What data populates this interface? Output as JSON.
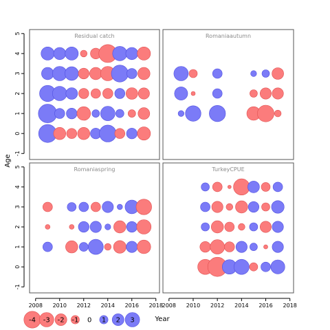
{
  "chart_data": {
    "type": "scatter",
    "description_free_note": "",
    "xlabel": "Year",
    "ylabel": "Age",
    "xlim": [
      2007.5,
      2018.3
    ],
    "ylim": [
      -1.3,
      5.2
    ],
    "x_ticks": [
      2008,
      2010,
      2012,
      2014,
      2016,
      2018
    ],
    "y_ticks": [
      -1,
      0,
      1,
      2,
      3,
      4,
      5
    ],
    "colors": {
      "positive": "#7b7bf7",
      "positive_stroke": "#5050e0",
      "negative": "#fb7c7c",
      "negative_stroke": "#e05050"
    },
    "legend": {
      "values": [
        -4,
        -3,
        -2,
        -1,
        0,
        1,
        2,
        3
      ],
      "labels": [
        "-4",
        "-3",
        "-2",
        "-1",
        "0",
        "1",
        "2",
        "3"
      ],
      "position": "bottom-left"
    },
    "panels": [
      {
        "title": "Residual catch",
        "points": [
          {
            "x": 2009,
            "y": 4,
            "v": 1.5
          },
          {
            "x": 2010,
            "y": 4,
            "v": 1.3
          },
          {
            "x": 2011,
            "y": 4,
            "v": 1.5
          },
          {
            "x": 2012,
            "y": 4,
            "v": -0.4
          },
          {
            "x": 2013,
            "y": 4,
            "v": -1.0
          },
          {
            "x": 2014,
            "y": 4,
            "v": -2.8
          },
          {
            "x": 2015,
            "y": 4,
            "v": 1.8
          },
          {
            "x": 2016,
            "y": 4,
            "v": 1.3
          },
          {
            "x": 2017,
            "y": 4,
            "v": -1.5
          },
          {
            "x": 2009,
            "y": 3,
            "v": 1.3
          },
          {
            "x": 2010,
            "y": 3,
            "v": 1.8
          },
          {
            "x": 2011,
            "y": 3,
            "v": 1.6
          },
          {
            "x": 2012,
            "y": 3,
            "v": -1.0
          },
          {
            "x": 2013,
            "y": 3,
            "v": -1.3
          },
          {
            "x": 2014,
            "y": 3,
            "v": -1.8
          },
          {
            "x": 2015,
            "y": 3,
            "v": 2.5
          },
          {
            "x": 2016,
            "y": 3,
            "v": 0.9
          },
          {
            "x": 2017,
            "y": 3,
            "v": -1.3
          },
          {
            "x": 2009,
            "y": 2,
            "v": 2.3
          },
          {
            "x": 2010,
            "y": 2,
            "v": 1.8
          },
          {
            "x": 2011,
            "y": 2,
            "v": 1.2
          },
          {
            "x": 2012,
            "y": 2,
            "v": -0.9
          },
          {
            "x": 2013,
            "y": 2,
            "v": -0.8
          },
          {
            "x": 2014,
            "y": 2,
            "v": -0.9
          },
          {
            "x": 2015,
            "y": 2,
            "v": 0.9
          },
          {
            "x": 2016,
            "y": 2,
            "v": -1.2
          },
          {
            "x": 2017,
            "y": 2,
            "v": -1.1
          },
          {
            "x": 2009,
            "y": 1,
            "v": 3.0
          },
          {
            "x": 2010,
            "y": 1,
            "v": 0.9
          },
          {
            "x": 2011,
            "y": 1,
            "v": 1.0
          },
          {
            "x": 2012,
            "y": 1,
            "v": -1.6
          },
          {
            "x": 2013,
            "y": 1,
            "v": 0.5
          },
          {
            "x": 2014,
            "y": 1,
            "v": 1.8
          },
          {
            "x": 2015,
            "y": 1,
            "v": 0.6
          },
          {
            "x": 2016,
            "y": 1,
            "v": -0.5
          },
          {
            "x": 2017,
            "y": 1,
            "v": -1.2
          },
          {
            "x": 2009,
            "y": 0,
            "v": 2.8
          },
          {
            "x": 2010,
            "y": 0,
            "v": -1.3
          },
          {
            "x": 2011,
            "y": 0,
            "v": -0.9
          },
          {
            "x": 2012,
            "y": 0,
            "v": -1.3
          },
          {
            "x": 2013,
            "y": 0,
            "v": 1.0
          },
          {
            "x": 2014,
            "y": 0,
            "v": 2.5
          },
          {
            "x": 2015,
            "y": 0,
            "v": -0.9
          },
          {
            "x": 2016,
            "y": 0,
            "v": 1.0
          },
          {
            "x": 2017,
            "y": 0,
            "v": -1.5
          }
        ]
      },
      {
        "title": "Romaniaautumn",
        "points": [
          {
            "x": 2009,
            "y": 3,
            "v": 1.8
          },
          {
            "x": 2010,
            "y": 3,
            "v": -0.6
          },
          {
            "x": 2012,
            "y": 3,
            "v": 0.8
          },
          {
            "x": 2015,
            "y": 3,
            "v": 0.3
          },
          {
            "x": 2016,
            "y": 3,
            "v": 0.5
          },
          {
            "x": 2017,
            "y": 3,
            "v": -1.2
          },
          {
            "x": 2009,
            "y": 2,
            "v": 1.5
          },
          {
            "x": 2010,
            "y": 2,
            "v": -0.15
          },
          {
            "x": 2012,
            "y": 2,
            "v": 0.8
          },
          {
            "x": 2015,
            "y": 2,
            "v": -0.5
          },
          {
            "x": 2016,
            "y": 2,
            "v": -1.1
          },
          {
            "x": 2017,
            "y": 2,
            "v": -1.1
          },
          {
            "x": 2009,
            "y": 1,
            "v": 0.3
          },
          {
            "x": 2010,
            "y": 1,
            "v": 2.1
          },
          {
            "x": 2012,
            "y": 1,
            "v": 2.3
          },
          {
            "x": 2015,
            "y": 1,
            "v": -1.6
          },
          {
            "x": 2016,
            "y": 1,
            "v": -2.4
          },
          {
            "x": 2017,
            "y": 1,
            "v": -0.4
          }
        ]
      },
      {
        "title": "Romaniaspring",
        "points": [
          {
            "x": 2009,
            "y": 3,
            "v": -0.8
          },
          {
            "x": 2011,
            "y": 3,
            "v": 0.7
          },
          {
            "x": 2012,
            "y": 3,
            "v": 0.8
          },
          {
            "x": 2013,
            "y": 3,
            "v": -0.8
          },
          {
            "x": 2014,
            "y": 3,
            "v": 1.1
          },
          {
            "x": 2015,
            "y": 3,
            "v": 0.25
          },
          {
            "x": 2016,
            "y": 3,
            "v": 1.6
          },
          {
            "x": 2017,
            "y": 3,
            "v": -2.1
          },
          {
            "x": 2009,
            "y": 2,
            "v": -0.2
          },
          {
            "x": 2011,
            "y": 2,
            "v": -0.2
          },
          {
            "x": 2012,
            "y": 2,
            "v": 1.0
          },
          {
            "x": 2013,
            "y": 2,
            "v": 1.1
          },
          {
            "x": 2014,
            "y": 2,
            "v": 0.3
          },
          {
            "x": 2015,
            "y": 2,
            "v": -1.3
          },
          {
            "x": 2016,
            "y": 2,
            "v": 1.0
          },
          {
            "x": 2017,
            "y": 2,
            "v": -1.8
          },
          {
            "x": 2009,
            "y": 1,
            "v": 0.8
          },
          {
            "x": 2011,
            "y": 1,
            "v": -1.3
          },
          {
            "x": 2012,
            "y": 1,
            "v": 0.7
          },
          {
            "x": 2013,
            "y": 1,
            "v": 2.0
          },
          {
            "x": 2014,
            "y": 1,
            "v": -0.4
          },
          {
            "x": 2015,
            "y": 1,
            "v": -1.4
          },
          {
            "x": 2016,
            "y": 1,
            "v": 1.1
          },
          {
            "x": 2017,
            "y": 1,
            "v": -1.6
          }
        ]
      },
      {
        "title": "TurkeyCPUE",
        "points": [
          {
            "x": 2011,
            "y": 4,
            "v": 0.6
          },
          {
            "x": 2012,
            "y": 4,
            "v": -0.8
          },
          {
            "x": 2013,
            "y": 4,
            "v": -0.1
          },
          {
            "x": 2014,
            "y": 4,
            "v": -2.3
          },
          {
            "x": 2015,
            "y": 4,
            "v": 1.2
          },
          {
            "x": 2016,
            "y": 4,
            "v": -0.7
          },
          {
            "x": 2017,
            "y": 4,
            "v": 0.8
          },
          {
            "x": 2011,
            "y": 3,
            "v": 0.8
          },
          {
            "x": 2012,
            "y": 3,
            "v": -1.1
          },
          {
            "x": 2013,
            "y": 3,
            "v": -0.4
          },
          {
            "x": 2014,
            "y": 3,
            "v": -1.3
          },
          {
            "x": 2015,
            "y": 3,
            "v": 1.0
          },
          {
            "x": 2016,
            "y": 3,
            "v": -0.6
          },
          {
            "x": 2017,
            "y": 3,
            "v": 1.4
          },
          {
            "x": 2011,
            "y": 2,
            "v": 0.6
          },
          {
            "x": 2012,
            "y": 2,
            "v": -1.3
          },
          {
            "x": 2013,
            "y": 2,
            "v": -0.8
          },
          {
            "x": 2014,
            "y": 2,
            "v": -0.4
          },
          {
            "x": 2015,
            "y": 2,
            "v": 0.6
          },
          {
            "x": 2016,
            "y": 2,
            "v": -1.1
          },
          {
            "x": 2017,
            "y": 2,
            "v": 1.1
          },
          {
            "x": 2011,
            "y": 1,
            "v": -1.0
          },
          {
            "x": 2012,
            "y": 1,
            "v": -1.8
          },
          {
            "x": 2013,
            "y": 1,
            "v": -0.9
          },
          {
            "x": 2014,
            "y": 1,
            "v": 1.1
          },
          {
            "x": 2015,
            "y": 1,
            "v": 0.5
          },
          {
            "x": 2016,
            "y": 1,
            "v": -0.15
          },
          {
            "x": 2017,
            "y": 1,
            "v": 1.1
          },
          {
            "x": 2011,
            "y": 0,
            "v": -2.0
          },
          {
            "x": 2012,
            "y": 0,
            "v": -3.2
          },
          {
            "x": 2013,
            "y": 0,
            "v": 1.8
          },
          {
            "x": 2014,
            "y": 0,
            "v": 2.0
          },
          {
            "x": 2015,
            "y": 0,
            "v": -0.6
          },
          {
            "x": 2016,
            "y": 0,
            "v": 0.8
          },
          {
            "x": 2017,
            "y": 0,
            "v": 1.7
          }
        ]
      }
    ]
  }
}
